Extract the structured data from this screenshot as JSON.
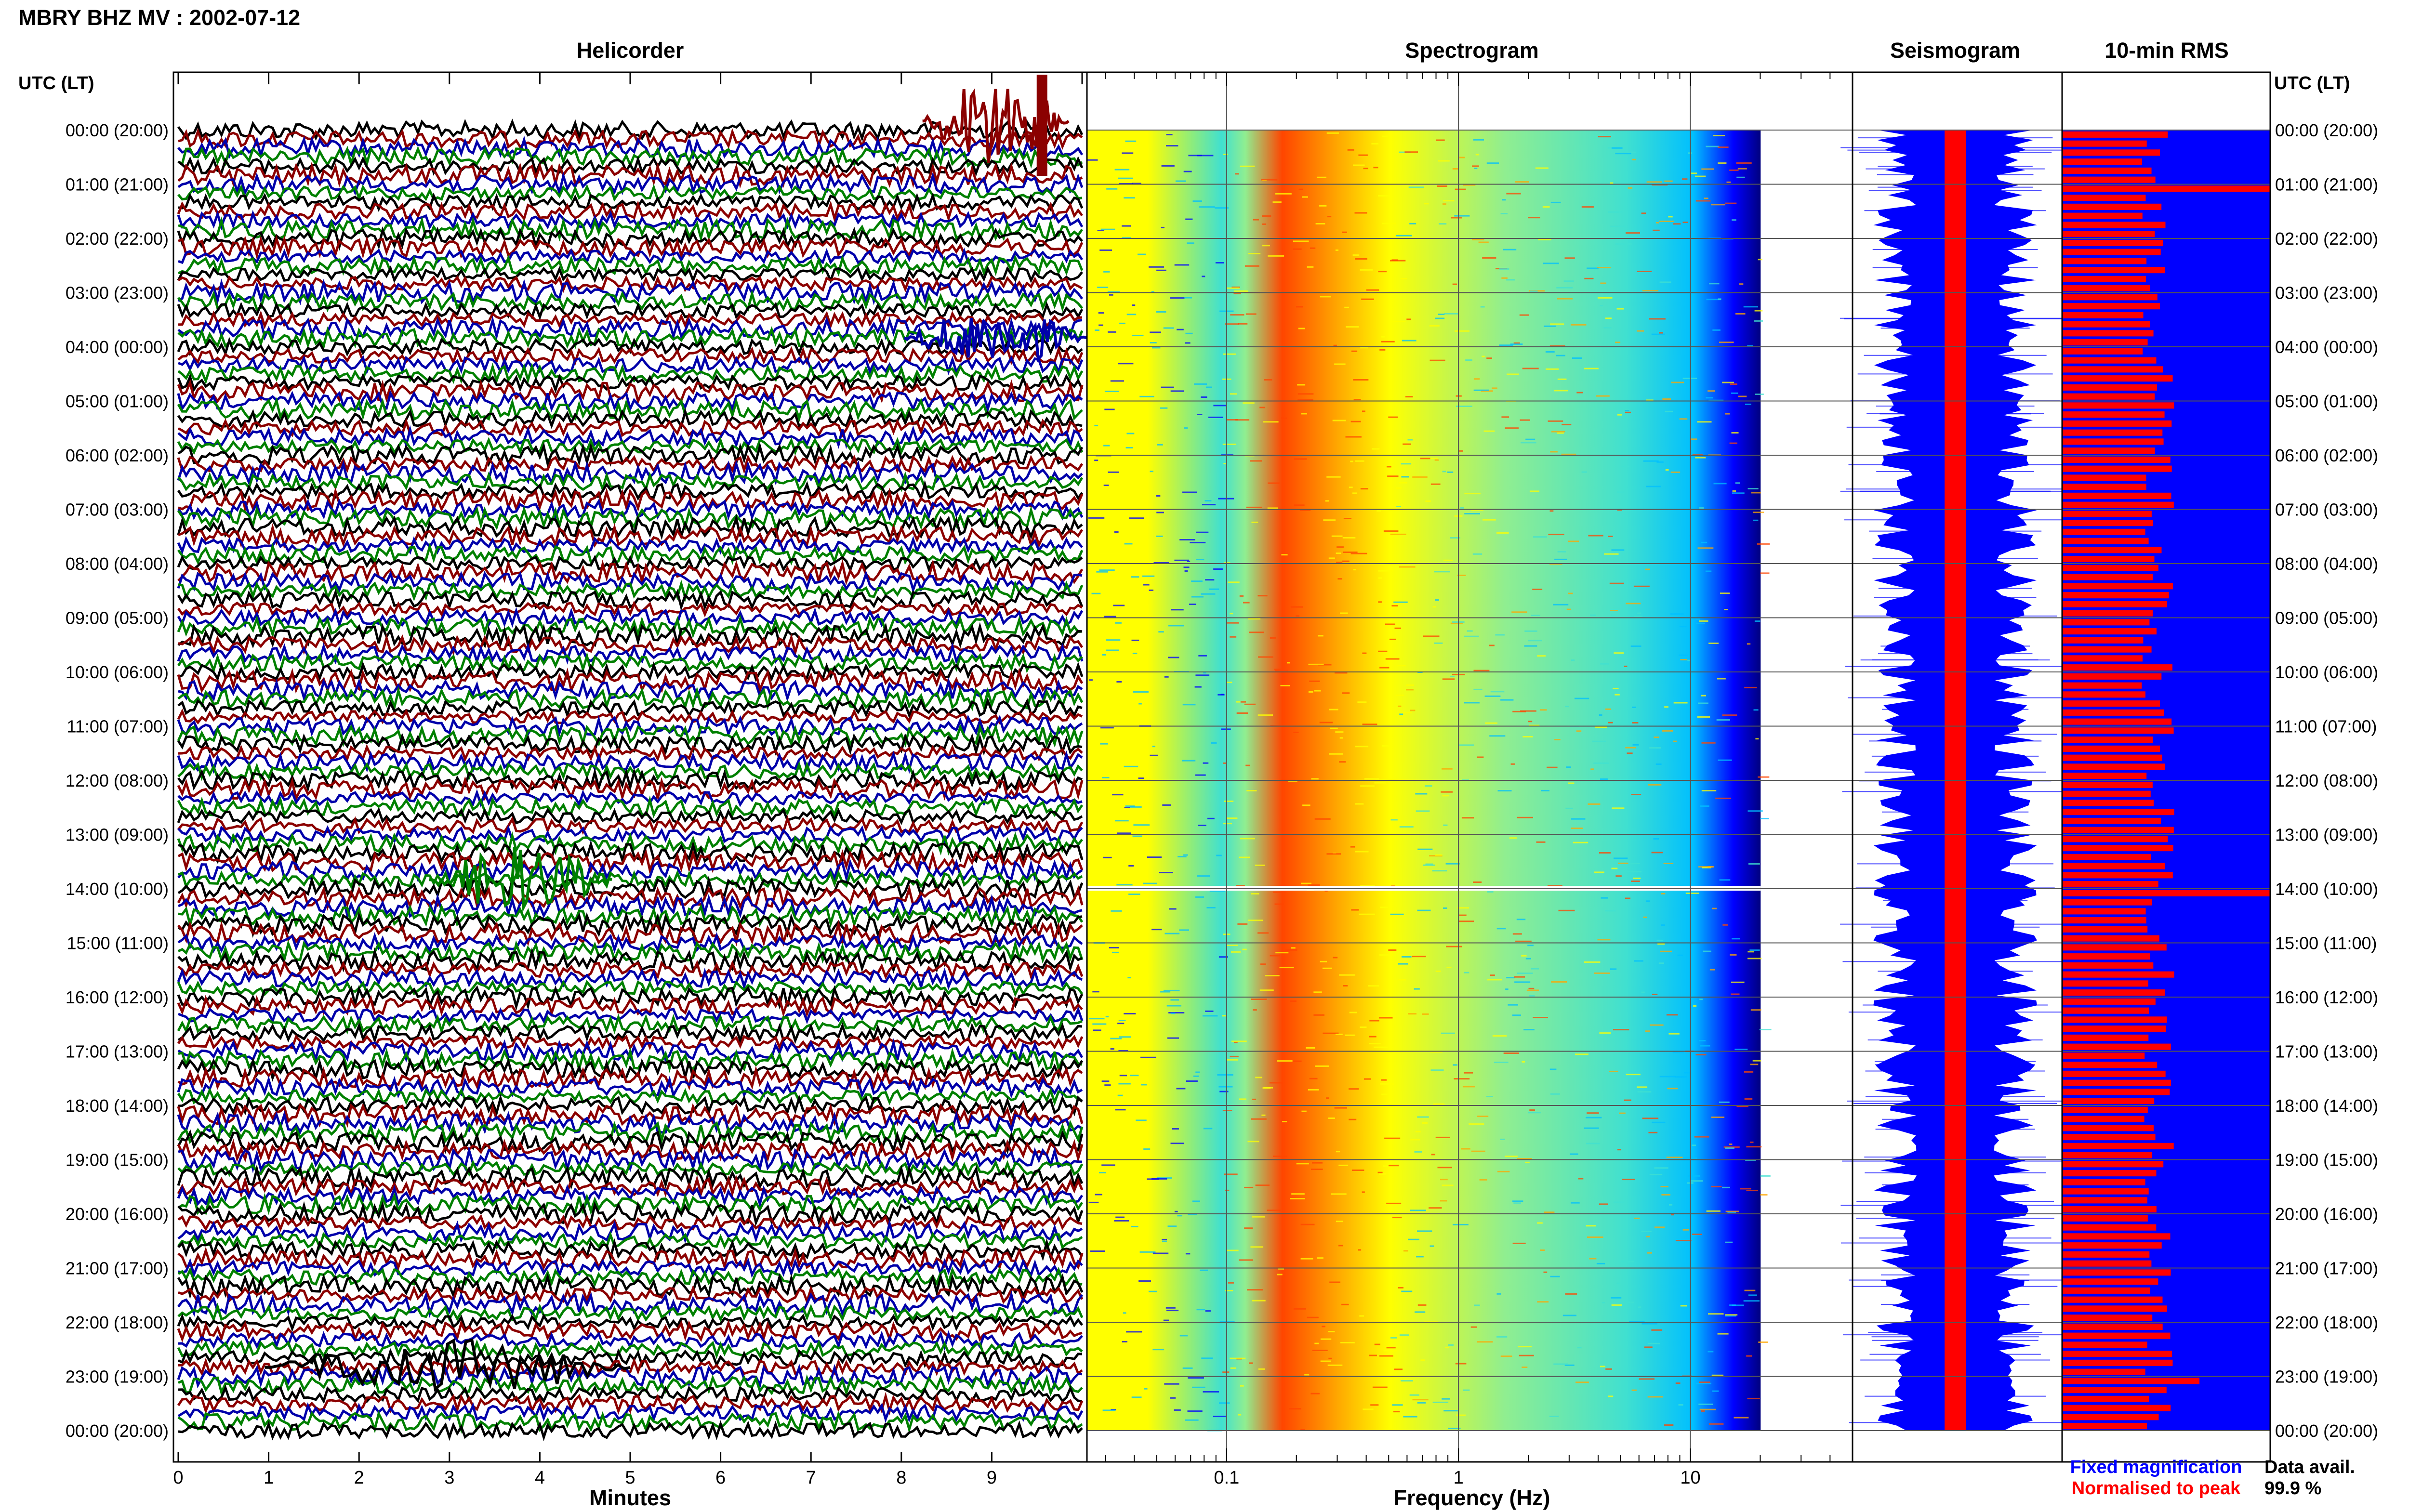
{
  "header": {
    "title": "MBRY BHZ MV : 2002-07-12"
  },
  "panels": {
    "helicorder": "Helicorder",
    "spectrogram": "Spectrogram",
    "seismogram": "Seismogram",
    "rms": "10-min RMS"
  },
  "time_axis": {
    "label": "UTC (LT)",
    "labels": [
      "00:00 (20:00)",
      "01:00 (21:00)",
      "02:00 (22:00)",
      "03:00 (23:00)",
      "04:00 (00:00)",
      "05:00 (01:00)",
      "06:00 (02:00)",
      "07:00 (03:00)",
      "08:00 (04:00)",
      "09:00 (05:00)",
      "10:00 (06:00)",
      "11:00 (07:00)",
      "12:00 (08:00)",
      "13:00 (09:00)",
      "14:00 (10:00)",
      "15:00 (11:00)",
      "16:00 (12:00)",
      "17:00 (13:00)",
      "18:00 (14:00)",
      "19:00 (15:00)",
      "20:00 (16:00)",
      "21:00 (17:00)",
      "22:00 (18:00)",
      "23:00 (19:00)",
      "00:00 (20:00)"
    ]
  },
  "legend": {
    "fixed": "Fixed magnification",
    "normalised": "Normalised to peak",
    "fixed_color": "#0000ff",
    "normalised_color": "#ff0000"
  },
  "availability": {
    "label": "Data avail.",
    "value": "99.9 %"
  },
  "chart_data": [
    {
      "type": "line",
      "title": "Helicorder",
      "xlabel": "Minutes",
      "x_ticks": [
        "0",
        "1",
        "2",
        "3",
        "4",
        "5",
        "6",
        "7",
        "8",
        "9"
      ],
      "xlim": [
        0,
        10
      ],
      "trace_colors": [
        "#000000",
        "#8b0000",
        "#0000aa",
        "#008000"
      ],
      "rows_per_hour": 6,
      "hours": 24
    },
    {
      "type": "heatmap",
      "title": "Spectrogram",
      "xlabel": "Frequency (Hz)",
      "x_scale": "log",
      "x_ticks": [
        "0.1",
        "1",
        "10"
      ],
      "xlim": [
        0.025,
        50
      ],
      "colormap": [
        "#00007f",
        "#0000ff",
        "#00bfff",
        "#40e0d0",
        "#90ee90",
        "#ffff00",
        "#ffa500",
        "#ff4500"
      ],
      "peak_band_hz": [
        0.2,
        0.5
      ]
    },
    {
      "type": "line",
      "title": "Seismogram",
      "series": [
        {
          "name": "Fixed magnification",
          "color": "#0000ff"
        },
        {
          "name": "Normalised to peak",
          "color": "#ff0000"
        }
      ]
    },
    {
      "type": "bar",
      "title": "10-min RMS",
      "series": [
        {
          "name": "Fixed magnification",
          "color": "#0000ff"
        },
        {
          "name": "Normalised to peak",
          "color": "#ff0000"
        }
      ],
      "bar_count": 144,
      "relative_peaks": [
        {
          "time": "01:00",
          "value": 1.0
        },
        {
          "time": "14:00",
          "value": 1.0
        },
        {
          "time": "23:00",
          "value": 0.66
        }
      ],
      "typical_relative_value": 0.45
    }
  ]
}
